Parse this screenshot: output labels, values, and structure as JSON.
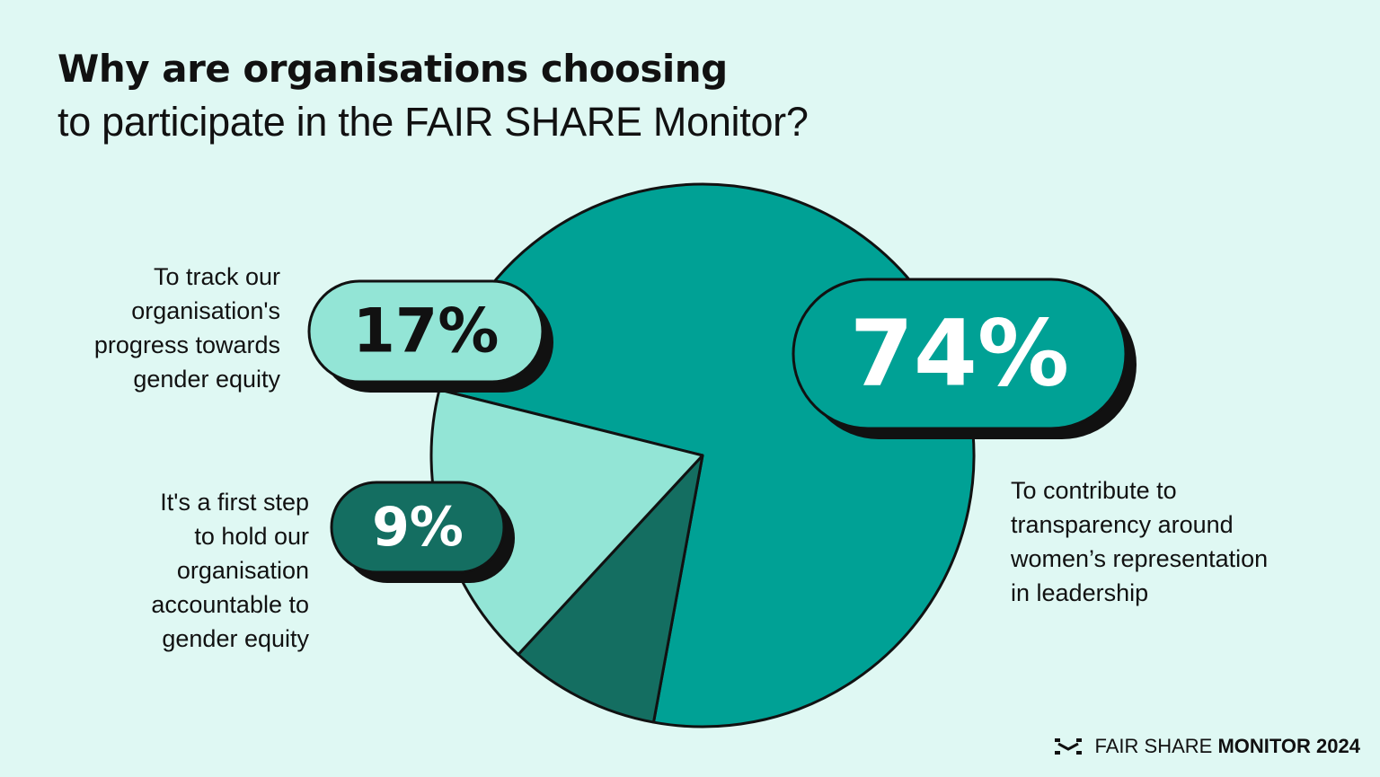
{
  "title_line1": "Why are organisations choosing",
  "title_line2": "to participate in the FAIR SHARE Monitor?",
  "chart_data": {
    "type": "pie",
    "series": [
      {
        "value": 74,
        "value_label": "74%",
        "description": "To contribute to\ntransparency around\nwomen’s representation\nin leadership",
        "color": "#00a195"
      },
      {
        "value": 9,
        "value_label": "9%",
        "description": "It's a first step\nto hold our\norganisation\naccountable to\ngender equity",
        "color": "#146e61"
      },
      {
        "value": 17,
        "value_label": "17%",
        "description": "To track our\norganisation's\nprogress towards\ngender equity",
        "color": "#93e5d6"
      }
    ]
  },
  "footer": {
    "brand_light": "FAIR SHARE",
    "brand_bold": "MONITOR 2024",
    "logo_icon": "fair-share-logo-icon"
  }
}
